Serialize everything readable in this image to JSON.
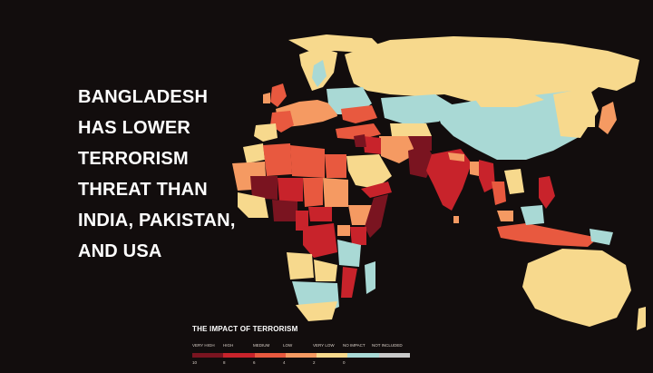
{
  "headline": {
    "lines": [
      "BANGLADESH",
      "HAS LOWER",
      "TERRORISM",
      "THREAT  THAN",
      "INDIA, PAKISTAN,",
      "AND USA"
    ]
  },
  "legend": {
    "title": "THE IMPACT OF TERRORISM",
    "categories": [
      {
        "label": "VERY HIGH",
        "color": "#7a1420"
      },
      {
        "label": "HIGH",
        "color": "#c8232b"
      },
      {
        "label": "MEDIUM",
        "color": "#e8593f"
      },
      {
        "label": "LOW",
        "color": "#f59a62"
      },
      {
        "label": "VERY LOW",
        "color": "#f7d98d"
      },
      {
        "label": "NO IMPACT",
        "color": "#a9d9d5"
      },
      {
        "label": "NOT INCLUDED",
        "color": "#c9c9c9"
      }
    ],
    "scale": [
      "10",
      "8",
      "6",
      "4",
      "2",
      "0"
    ]
  },
  "colors": {
    "background": "#120d0d",
    "very_high": "#7a1420",
    "high": "#c8232b",
    "medium": "#e8593f",
    "low": "#f59a62",
    "very_low": "#f7d98d",
    "no_impact": "#a9d9d5"
  }
}
